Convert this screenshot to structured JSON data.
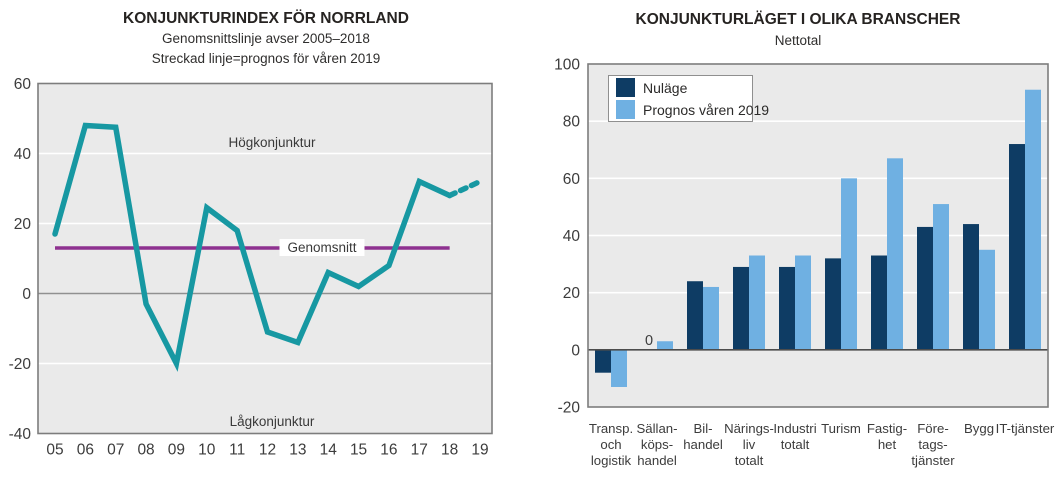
{
  "chart_data": [
    {
      "type": "line",
      "title": "KONJUNKTURINDEX FÖR NORRLAND",
      "subtitle_line1": "Genomsnittslinje avser 2005–2018",
      "subtitle_line2": "Streckad linje=prognos för våren 2019",
      "x": [
        "05",
        "06",
        "07",
        "08",
        "09",
        "10",
        "11",
        "12",
        "13",
        "14",
        "15",
        "16",
        "17",
        "18",
        "19"
      ],
      "series": [
        {
          "name": "Konjunkturindex",
          "values": [
            17,
            48,
            47.5,
            -3,
            -20,
            24.5,
            18,
            -11,
            -14,
            6,
            2,
            8,
            32,
            28,
            32
          ]
        }
      ],
      "dashed_from_x": "18",
      "dashed_note": "prognos för våren 2019",
      "average_line": {
        "label": "Genomsnitt",
        "value": 13,
        "x_start": "05",
        "x_end": "18"
      },
      "annotations": {
        "high": "Högkonjunktur",
        "low": "Lågkonjunktur"
      },
      "ylim": [
        -40,
        60
      ],
      "yticks": [
        60,
        40,
        20,
        0,
        -20,
        -40
      ],
      "grid": true,
      "colors": {
        "line": "#1798a2",
        "average": "#8e3190"
      }
    },
    {
      "type": "bar",
      "title": "KONJUNKTURLÄGET I OLIKA BRANSCHER",
      "subtitle": "Nettotal",
      "categories": [
        "Transp. och logistik",
        "Sällanköpshandel",
        "Bilhandel",
        "Näringsliv totalt",
        "Industri totalt",
        "Turism",
        "Fastighet",
        "Företagstjänster",
        "Bygg",
        "IT-tjänster"
      ],
      "category_lines": [
        [
          "Transp.",
          "och",
          "logistik"
        ],
        [
          "Sällan-",
          "köps-",
          "handel"
        ],
        [
          "Bil-",
          "handel"
        ],
        [
          "Närings-",
          "liv",
          "totalt"
        ],
        [
          "Industri",
          "totalt"
        ],
        [
          "Turism"
        ],
        [
          "Fastig-",
          "het"
        ],
        [
          "Före-",
          "tags-",
          "tjänster"
        ],
        [
          "Bygg"
        ],
        [
          "IT-tjänster"
        ]
      ],
      "series": [
        {
          "name": "Nuläge",
          "color": "#0e3c64",
          "values": [
            -8,
            0,
            24,
            29,
            29,
            32,
            33,
            43,
            44,
            72
          ]
        },
        {
          "name": "Prognos våren 2019",
          "color": "#6fb0e2",
          "values": [
            -13,
            3,
            22,
            33,
            33,
            60,
            67,
            51,
            35,
            91
          ]
        }
      ],
      "ylim": [
        -20,
        100
      ],
      "yticks": [
        100,
        80,
        60,
        40,
        20,
        0,
        -20
      ],
      "legend_position": "top-left",
      "grid": true,
      "data_labels": [
        {
          "series": 0,
          "category_index": 1,
          "text": "0"
        }
      ]
    }
  ]
}
